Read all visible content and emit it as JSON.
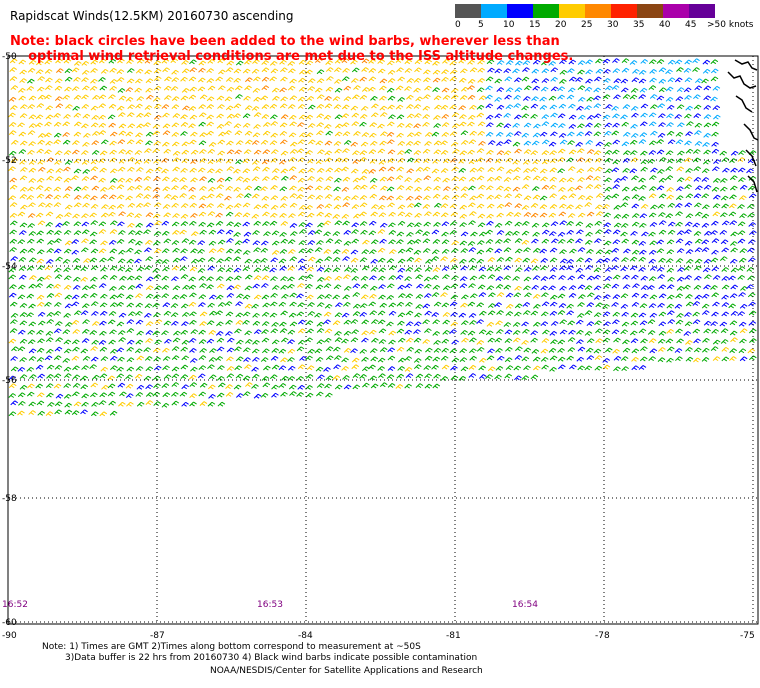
{
  "title": "Rapidscat Winds(12.5KM) 20160730 ascending",
  "note": {
    "line1": "Note: black circles have been added to the wind barbs, wherever less than",
    "line2": "    optimal wind retrieval conditions are met due to the ISS altitude changes."
  },
  "legend": {
    "labels": [
      "0",
      "5",
      "10",
      "15",
      "20",
      "25",
      "30",
      "35",
      "40",
      "45",
      ">50 knots"
    ],
    "colors": [
      "#555555",
      "#00aaff",
      "#0000ff",
      "#00aa00",
      "#ffcc00",
      "#ff8800",
      "#ff2200",
      "#8b4513",
      "#aa00aa",
      "#660099"
    ]
  },
  "y_axis": [
    "-50",
    "-52",
    "-54",
    "-56",
    "-58",
    "-60"
  ],
  "x_axis": [
    "-90",
    "-87",
    "-84",
    "-81",
    "-78",
    "-75"
  ],
  "times": [
    "16:52",
    "16:53",
    "16:54"
  ],
  "footer": {
    "line1": "Note: 1) Times are GMT 2)Times along bottom correspond to measurement at ~50S",
    "line2": "3)Data buffer is 22 hrs from 20160730 4) Black wind barbs indicate possible contamination",
    "line3": "NOAA/NESDIS/Center for Satellite Applications and Research"
  }
}
